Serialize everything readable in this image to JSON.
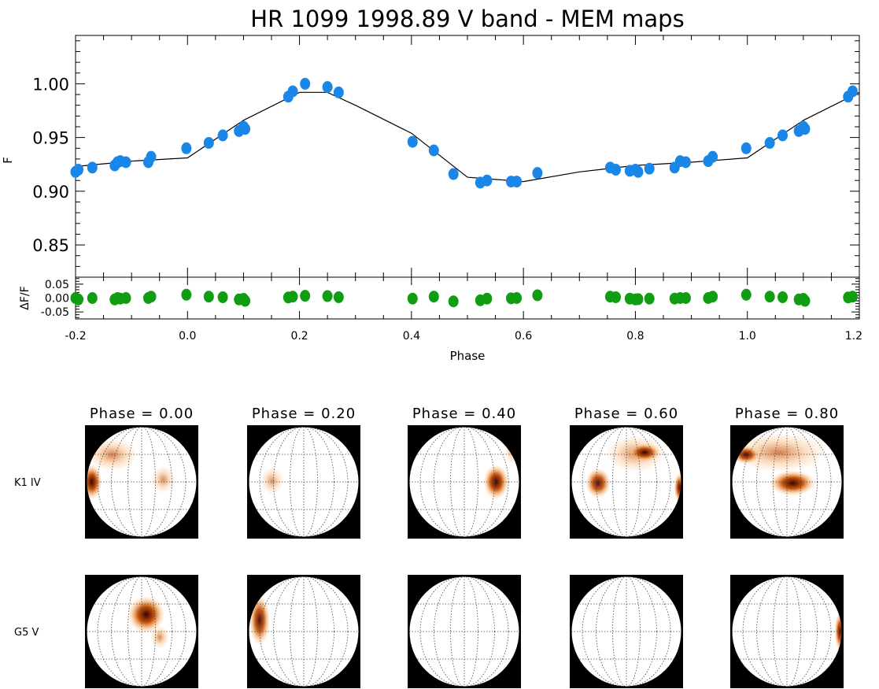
{
  "figure_title": "HR 1099 1998.89 V band - MEM maps",
  "colors": {
    "observed_points": "#1a87e8",
    "residual_points": "#119d11",
    "model_line": "#000000",
    "spot_dark": "#3a0000",
    "spot_mid": "#c24a00",
    "spot_light": "#fbc28a"
  },
  "chart_data": [
    {
      "type": "scatter",
      "role": "light-curve",
      "title": "",
      "xlabel": "",
      "ylabel": "F",
      "xlim": [
        -0.2,
        1.2
      ],
      "ylim": [
        0.82,
        1.045
      ],
      "yticks": [
        "0.85",
        "0.90",
        "0.95",
        "1.00"
      ],
      "ytick_values": [
        0.85,
        0.9,
        0.95,
        1.0
      ],
      "series": [
        {
          "kind": "points",
          "x": [
            -0.2,
            -0.195,
            -0.17,
            -0.13,
            -0.125,
            -0.12,
            -0.11,
            -0.07,
            -0.065,
            -0.002,
            0.038,
            0.063,
            0.092,
            0.1,
            0.103,
            0.18,
            0.188,
            0.21,
            0.25,
            0.27,
            0.402,
            0.44,
            0.475,
            0.523,
            0.535,
            0.578,
            0.588,
            0.625,
            0.755,
            0.765,
            0.79,
            0.8,
            0.805,
            0.825,
            0.87,
            0.88,
            0.89,
            0.93,
            0.938,
            0.998,
            1.04,
            1.063,
            1.092,
            1.1,
            1.103,
            1.18,
            1.188
          ],
          "y": [
            0.918,
            0.92,
            0.922,
            0.924,
            0.927,
            0.928,
            0.927,
            0.927,
            0.932,
            0.94,
            0.945,
            0.952,
            0.956,
            0.96,
            0.958,
            0.988,
            0.993,
            1.0,
            0.997,
            0.992,
            0.946,
            0.938,
            0.916,
            0.908,
            0.91,
            0.909,
            0.909,
            0.917,
            0.922,
            0.92,
            0.919,
            0.92,
            0.918,
            0.921,
            0.922,
            0.928,
            0.927,
            0.928,
            0.932,
            0.94,
            0.945,
            0.952,
            0.956,
            0.96,
            0.958,
            0.988,
            0.993
          ]
        },
        {
          "kind": "line",
          "x": [
            -0.2,
            -0.1,
            0.0,
            0.1,
            0.2,
            0.25,
            0.3,
            0.4,
            0.5,
            0.6,
            0.7,
            0.8,
            0.9,
            1.0,
            1.1,
            1.2
          ],
          "y": [
            0.923,
            0.928,
            0.931,
            0.966,
            0.992,
            0.992,
            0.98,
            0.954,
            0.913,
            0.909,
            0.918,
            0.924,
            0.927,
            0.931,
            0.966,
            0.992
          ]
        }
      ]
    },
    {
      "type": "scatter",
      "role": "residuals",
      "xlabel": "Phase",
      "ylabel": "ΔF/F",
      "xlim": [
        -0.2,
        1.2
      ],
      "ylim": [
        -0.075,
        0.075
      ],
      "xticks": [
        "-0.2",
        "0.0",
        "0.2",
        "0.4",
        "0.6",
        "0.8",
        "1.0",
        "1.2"
      ],
      "xtick_values": [
        -0.2,
        0.0,
        0.2,
        0.4,
        0.6,
        0.8,
        1.0,
        1.2
      ],
      "yticks": [
        "0.05",
        "0.00",
        "-0.05"
      ],
      "ytick_values": [
        0.05,
        0.0,
        -0.05
      ],
      "series": [
        {
          "kind": "points",
          "x": [
            -0.2,
            -0.195,
            -0.17,
            -0.13,
            -0.125,
            -0.12,
            -0.11,
            -0.07,
            -0.065,
            -0.002,
            0.038,
            0.063,
            0.092,
            0.1,
            0.103,
            0.18,
            0.188,
            0.21,
            0.25,
            0.27,
            0.402,
            0.44,
            0.475,
            0.523,
            0.535,
            0.578,
            0.588,
            0.625,
            0.755,
            0.765,
            0.79,
            0.8,
            0.805,
            0.825,
            0.87,
            0.88,
            0.89,
            0.93,
            0.938,
            0.998,
            1.04,
            1.063,
            1.092,
            1.1,
            1.103,
            1.18,
            1.188
          ],
          "y": [
            0.0,
            -0.005,
            0.0,
            -0.005,
            0.0,
            -0.002,
            0.0,
            0.0,
            0.005,
            0.012,
            0.005,
            0.003,
            -0.005,
            -0.003,
            -0.01,
            0.002,
            0.005,
            0.008,
            0.007,
            0.003,
            -0.002,
            0.005,
            -0.012,
            -0.008,
            -0.002,
            -0.001,
            0.0,
            0.01,
            0.005,
            0.003,
            -0.002,
            -0.005,
            -0.004,
            -0.002,
            -0.002,
            0.0,
            0.0,
            0.0,
            0.005,
            0.012,
            0.005,
            0.003,
            -0.005,
            -0.003,
            -0.01,
            0.002,
            0.005
          ]
        }
      ]
    }
  ],
  "maps": {
    "phase_labels": [
      "Phase = 0.00",
      "Phase = 0.20",
      "Phase = 0.40",
      "Phase = 0.60",
      "Phase = 0.80"
    ],
    "rows": [
      {
        "star_label": "K1  IV",
        "spots": [
          [
            {
              "u": 0.24,
              "v": 0.26,
              "rx": 0.22,
              "ry": 0.14,
              "level": 0.55
            },
            {
              "u": 0.06,
              "v": 0.5,
              "rx": 0.09,
              "ry": 0.15,
              "level": 1.0
            },
            {
              "u": 0.69,
              "v": 0.48,
              "rx": 0.1,
              "ry": 0.12,
              "level": 0.45
            }
          ],
          [
            {
              "u": 0.22,
              "v": 0.49,
              "rx": 0.1,
              "ry": 0.12,
              "level": 0.35
            }
          ],
          [
            {
              "u": 0.78,
              "v": 0.5,
              "rx": 0.11,
              "ry": 0.15,
              "level": 0.95
            },
            {
              "u": 0.92,
              "v": 0.22,
              "rx": 0.06,
              "ry": 0.12,
              "level": 0.4
            }
          ],
          [
            {
              "u": 0.58,
              "v": 0.25,
              "rx": 0.26,
              "ry": 0.16,
              "level": 0.5
            },
            {
              "u": 0.66,
              "v": 0.24,
              "rx": 0.14,
              "ry": 0.08,
              "level": 0.95
            },
            {
              "u": 0.25,
              "v": 0.51,
              "rx": 0.11,
              "ry": 0.13,
              "level": 0.8
            },
            {
              "u": 0.97,
              "v": 0.55,
              "rx": 0.05,
              "ry": 0.13,
              "level": 0.85
            }
          ],
          [
            {
              "u": 0.43,
              "v": 0.24,
              "rx": 0.42,
              "ry": 0.17,
              "level": 0.55
            },
            {
              "u": 0.14,
              "v": 0.26,
              "rx": 0.12,
              "ry": 0.08,
              "level": 0.85
            },
            {
              "u": 0.55,
              "v": 0.51,
              "rx": 0.2,
              "ry": 0.11,
              "level": 1.0
            }
          ]
        ]
      },
      {
        "star_label": "G5   V",
        "spots": [
          [
            {
              "u": 0.54,
              "v": 0.35,
              "rx": 0.16,
              "ry": 0.16,
              "level": 0.95
            },
            {
              "u": 0.66,
              "v": 0.55,
              "rx": 0.08,
              "ry": 0.1,
              "level": 0.5
            }
          ],
          [
            {
              "u": 0.11,
              "v": 0.4,
              "rx": 0.09,
              "ry": 0.22,
              "level": 0.8
            }
          ],
          [],
          [],
          [
            {
              "u": 0.97,
              "v": 0.5,
              "rx": 0.05,
              "ry": 0.17,
              "level": 0.85
            }
          ]
        ]
      }
    ]
  }
}
